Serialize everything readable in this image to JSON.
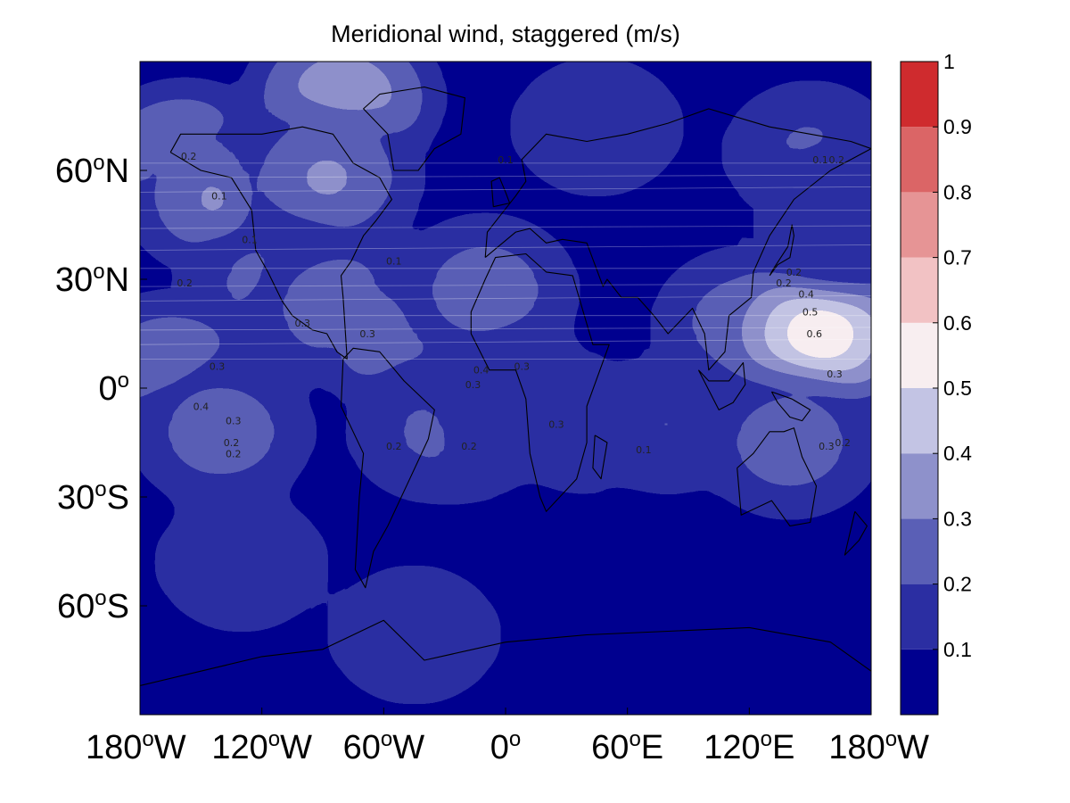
{
  "chart_data": {
    "type": "heatmap",
    "title": "Meridional wind, staggered (m/s)",
    "xlabel": "",
    "ylabel": "",
    "xlim": [
      -180,
      180
    ],
    "ylim": [
      -90,
      90
    ],
    "x_ticks": [
      {
        "value": -180,
        "label": "180",
        "suffix": "W"
      },
      {
        "value": -120,
        "label": "120",
        "suffix": "W"
      },
      {
        "value": -60,
        "label": "60",
        "suffix": "W"
      },
      {
        "value": 0,
        "label": "0",
        "suffix": ""
      },
      {
        "value": 60,
        "label": "60",
        "suffix": "E"
      },
      {
        "value": 120,
        "label": "120",
        "suffix": "E"
      },
      {
        "value": 180,
        "label": "180",
        "suffix": "W"
      }
    ],
    "y_ticks": [
      {
        "value": 60,
        "label": "60",
        "suffix": "N"
      },
      {
        "value": 30,
        "label": "30",
        "suffix": "N"
      },
      {
        "value": 0,
        "label": "0",
        "suffix": ""
      },
      {
        "value": -30,
        "label": "30",
        "suffix": "S"
      },
      {
        "value": -60,
        "label": "60",
        "suffix": "S"
      }
    ],
    "colorbar": {
      "levels": [
        0,
        0.1,
        0.2,
        0.3,
        0.4,
        0.5,
        0.6,
        0.7,
        0.8,
        0.9,
        1.0
      ],
      "tick_labels": [
        "0.1",
        "0.2",
        "0.3",
        "0.4",
        "0.5",
        "0.6",
        "0.7",
        "0.8",
        "0.9",
        "1"
      ],
      "colors": [
        "#00008f",
        "#2b2ea2",
        "#5a5fb6",
        "#8e91cb",
        "#c3c4e4",
        "#f8eef0",
        "#f2c2c4",
        "#e69495",
        "#db6566",
        "#cf2b2e"
      ]
    },
    "background_level": 0.05,
    "features": [
      {
        "lon": -158,
        "lat": 62,
        "value": 0.45
      },
      {
        "lon": -140,
        "lat": 52,
        "value": 0.35
      },
      {
        "lon": -80,
        "lat": 80,
        "value": 0.45
      },
      {
        "lon": -88,
        "lat": 58,
        "value": 0.35
      },
      {
        "lon": -112,
        "lat": 28,
        "value": 0.3
      },
      {
        "lon": -165,
        "lat": 5,
        "value": 0.35
      },
      {
        "lon": -140,
        "lat": -12,
        "value": 0.3
      },
      {
        "lon": -80,
        "lat": 22,
        "value": 0.32
      },
      {
        "lon": -42,
        "lat": 12,
        "value": 0.42
      },
      {
        "lon": -12,
        "lat": 8,
        "value": 0.55
      },
      {
        "lon": -10,
        "lat": 27,
        "value": 0.3
      },
      {
        "lon": -20,
        "lat": -13,
        "value": 0.25
      },
      {
        "lon": -35,
        "lat": -12,
        "value": 0.25
      },
      {
        "lon": 15,
        "lat": -5,
        "value": 0.25
      },
      {
        "lon": 40,
        "lat": -10,
        "value": 0.22
      },
      {
        "lon": 80,
        "lat": -10,
        "value": 0.22
      },
      {
        "lon": 118,
        "lat": 18,
        "value": 0.3
      },
      {
        "lon": 155,
        "lat": 15,
        "value": 0.65
      },
      {
        "lon": 140,
        "lat": -15,
        "value": 0.3
      },
      {
        "lon": 45,
        "lat": 72,
        "value": 0.2
      },
      {
        "lon": 150,
        "lat": 65,
        "value": 0.25
      },
      {
        "lon": 165,
        "lat": 45,
        "value": 0.2
      },
      {
        "lon": -130,
        "lat": -48,
        "value": 0.2
      },
      {
        "lon": -45,
        "lat": -68,
        "value": 0.2
      }
    ],
    "contour_labels": [
      {
        "text": "0.1",
        "lon": -141,
        "lat": 52
      },
      {
        "text": "0.2",
        "lon": -156,
        "lat": 63
      },
      {
        "text": "0.1",
        "lon": -126,
        "lat": 40
      },
      {
        "text": "0.2",
        "lon": -158,
        "lat": 28
      },
      {
        "text": "0.3",
        "lon": -100,
        "lat": 17
      },
      {
        "text": "0.3",
        "lon": -68,
        "lat": 14
      },
      {
        "text": "0.3",
        "lon": -142,
        "lat": 5
      },
      {
        "text": "0.4",
        "lon": -150,
        "lat": -6
      },
      {
        "text": "0.3",
        "lon": -134,
        "lat": -10
      },
      {
        "text": "0.2",
        "lon": -135,
        "lat": -16
      },
      {
        "text": "0.2",
        "lon": -134,
        "lat": -19
      },
      {
        "text": "0.4",
        "lon": -12,
        "lat": 4
      },
      {
        "text": "0.3",
        "lon": -16,
        "lat": 0
      },
      {
        "text": "0.3",
        "lon": 8,
        "lat": 5
      },
      {
        "text": "0.3",
        "lon": 25,
        "lat": -11
      },
      {
        "text": "0.1",
        "lon": -55,
        "lat": 34
      },
      {
        "text": "0.2",
        "lon": -55,
        "lat": -17
      },
      {
        "text": "0.2",
        "lon": -18,
        "lat": -17
      },
      {
        "text": "0.1",
        "lon": 68,
        "lat": -18
      },
      {
        "text": "0.2",
        "lon": 142,
        "lat": 31
      },
      {
        "text": "0.2",
        "lon": 137,
        "lat": 28
      },
      {
        "text": "0.4",
        "lon": 148,
        "lat": 25
      },
      {
        "text": "0.5",
        "lon": 150,
        "lat": 20
      },
      {
        "text": "0.6",
        "lon": 152,
        "lat": 14
      },
      {
        "text": "0.3",
        "lon": 162,
        "lat": 3
      },
      {
        "text": "0.3",
        "lon": 158,
        "lat": -17
      },
      {
        "text": "0.2",
        "lon": 166,
        "lat": -16
      },
      {
        "text": "0.1",
        "lon": 155,
        "lat": 62
      },
      {
        "text": "0.2",
        "lon": 163,
        "lat": 62
      },
      {
        "text": "0.1",
        "lon": 0,
        "lat": 62
      }
    ]
  }
}
